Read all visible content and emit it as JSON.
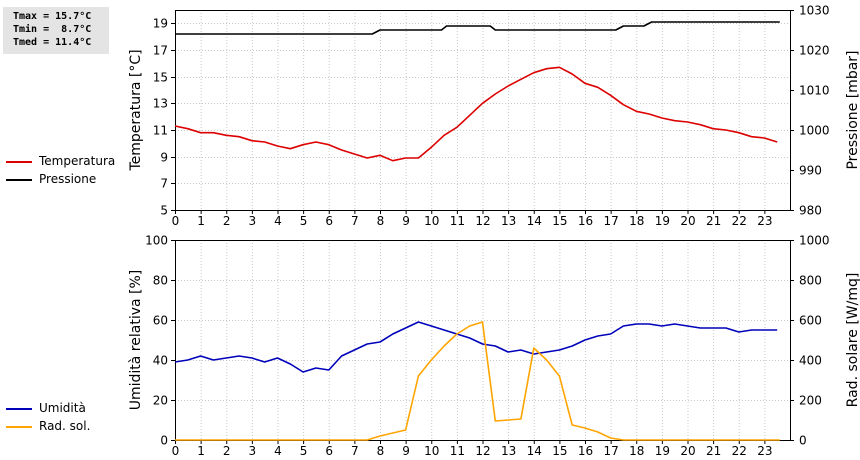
{
  "stats": {
    "tmax": "Tmax = 15.7°C",
    "tmin": "Tmin =  8.7°C",
    "tmed": "Tmed = 11.4°C"
  },
  "legend_top": [
    {
      "label": "Temperatura",
      "color": "#dd0000"
    },
    {
      "label": "Pressione",
      "color": "#000000"
    }
  ],
  "legend_bottom": [
    {
      "label": "Umidità",
      "color": "#0000bb"
    },
    {
      "label": "Rad. sol.",
      "color": "#ffa500"
    }
  ],
  "chart_data": [
    {
      "type": "line",
      "xlabel": "",
      "xlim": [
        0,
        24
      ],
      "xticks": [
        0,
        1,
        2,
        3,
        4,
        5,
        6,
        7,
        8,
        9,
        10,
        11,
        12,
        13,
        14,
        15,
        16,
        17,
        18,
        19,
        20,
        21,
        22,
        23
      ],
      "ylabel_left": "Temperatura [°C]",
      "ylim_left": [
        5,
        20
      ],
      "yticks_left": [
        5,
        7,
        9,
        11,
        13,
        15,
        17,
        19
      ],
      "ylabel_right": "Pressione [mbar]",
      "ylim_right": [
        980,
        1030
      ],
      "yticks_right": [
        980,
        990,
        1000,
        1010,
        1020,
        1030
      ],
      "grid": true,
      "series": [
        {
          "name": "Temperatura",
          "axis": "left",
          "color": "#dd0000",
          "x": [
            0,
            0.5,
            1,
            1.5,
            2,
            2.5,
            3,
            3.5,
            4,
            4.5,
            5,
            5.5,
            6,
            6.5,
            7,
            7.5,
            8,
            8.5,
            9,
            9.5,
            10,
            10.5,
            11,
            11.5,
            12,
            12.5,
            13,
            13.5,
            14,
            14.5,
            15,
            15.5,
            16,
            16.5,
            17,
            17.5,
            18,
            18.5,
            19,
            19.5,
            20,
            20.5,
            21,
            21.5,
            22,
            22.5,
            23,
            23.5
          ],
          "values": [
            11.3,
            11.1,
            10.8,
            10.8,
            10.6,
            10.5,
            10.2,
            10.1,
            9.8,
            9.6,
            9.9,
            10.1,
            9.9,
            9.5,
            9.2,
            8.9,
            9.1,
            8.7,
            8.9,
            8.9,
            9.7,
            10.6,
            11.2,
            12.1,
            13.0,
            13.7,
            14.3,
            14.8,
            15.3,
            15.6,
            15.7,
            15.2,
            14.5,
            14.2,
            13.6,
            12.9,
            12.4,
            12.2,
            11.9,
            11.7,
            11.6,
            11.4,
            11.1,
            11.0,
            10.8,
            10.5,
            10.4,
            10.1
          ]
        },
        {
          "name": "Pressione",
          "axis": "right",
          "color": "#000000",
          "x": [
            0,
            7.7,
            8,
            10.4,
            10.6,
            12.3,
            12.5,
            17.2,
            17.5,
            18.3,
            18.6,
            23.6
          ],
          "values": [
            1024,
            1024,
            1025,
            1025,
            1026,
            1026,
            1025,
            1025,
            1026,
            1026,
            1027,
            1027
          ]
        }
      ]
    },
    {
      "type": "line",
      "xlabel": "",
      "xlim": [
        0,
        24
      ],
      "xticks": [
        0,
        1,
        2,
        3,
        4,
        5,
        6,
        7,
        8,
        9,
        10,
        11,
        12,
        13,
        14,
        15,
        16,
        17,
        18,
        19,
        20,
        21,
        22,
        23
      ],
      "ylabel_left": "Umidità relativa [%]",
      "ylim_left": [
        0,
        100
      ],
      "yticks_left": [
        0,
        20,
        40,
        60,
        80,
        100
      ],
      "ylabel_right": "Rad. solare [W/mq]",
      "ylim_right": [
        0,
        1000
      ],
      "yticks_right": [
        0,
        200,
        400,
        600,
        800,
        1000
      ],
      "grid": true,
      "series": [
        {
          "name": "Umidità",
          "axis": "left",
          "color": "#0000bb",
          "x": [
            0,
            0.5,
            1,
            1.5,
            2,
            2.5,
            3,
            3.5,
            4,
            4.5,
            5,
            5.5,
            6,
            6.5,
            7,
            7.5,
            8,
            8.5,
            9,
            9.5,
            10,
            10.5,
            11,
            11.5,
            12,
            12.5,
            13,
            13.5,
            14,
            14.5,
            15,
            15.5,
            16,
            16.5,
            17,
            17.5,
            18,
            18.5,
            19,
            19.5,
            20,
            20.5,
            21,
            21.5,
            22,
            22.5,
            23,
            23.5
          ],
          "values": [
            39,
            40,
            42,
            40,
            41,
            42,
            41,
            39,
            41,
            38,
            34,
            36,
            35,
            42,
            45,
            48,
            49,
            53,
            56,
            59,
            57,
            55,
            53,
            51,
            48,
            47,
            44,
            45,
            43,
            44,
            45,
            47,
            50,
            52,
            53,
            57,
            58,
            58,
            57,
            58,
            57,
            56,
            56,
            56,
            54,
            55,
            55,
            55
          ]
        },
        {
          "name": "Rad. sol.",
          "axis": "right",
          "color": "#ffa500",
          "x": [
            0,
            7.5,
            8,
            8.5,
            9,
            9.5,
            10,
            10.5,
            11,
            11.5,
            12,
            12.5,
            13,
            13.5,
            14,
            14.5,
            15,
            15.5,
            16,
            16.5,
            17,
            17.5,
            18,
            23.6
          ],
          "values": [
            0,
            0,
            20,
            35,
            50,
            320,
            400,
            470,
            530,
            570,
            590,
            95,
            100,
            105,
            460,
            400,
            320,
            75,
            60,
            40,
            10,
            0,
            0,
            0
          ]
        }
      ]
    }
  ]
}
